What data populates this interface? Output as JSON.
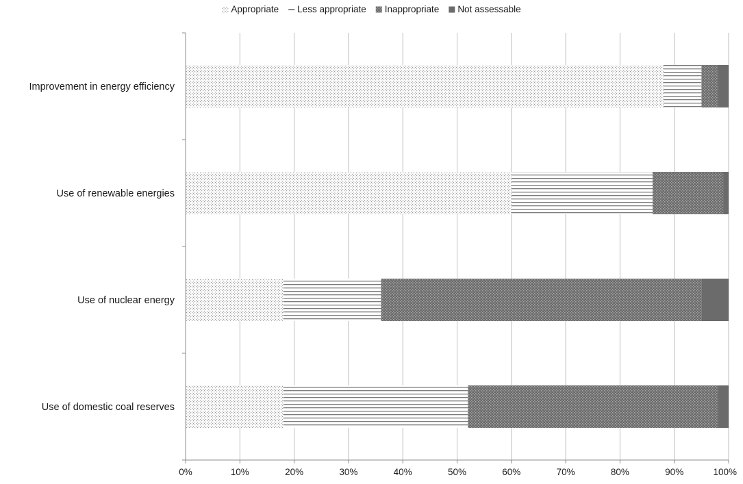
{
  "chart_data": {
    "type": "bar",
    "orientation": "horizontal",
    "stacked": "percent",
    "title": "",
    "xlabel": "",
    "ylabel": "",
    "categories": [
      "Improvement in energy efficiency",
      "Use of renewable energies",
      "Use of nuclear energy",
      "Use of domestic coal reserves"
    ],
    "series": [
      {
        "name": "Appropriate",
        "values": [
          88,
          60,
          18,
          18
        ],
        "pattern": "dots",
        "color": "#b3b3b3"
      },
      {
        "name": "Less appropriate",
        "values": [
          7,
          26,
          18,
          34
        ],
        "pattern": "horizontal-lines",
        "color": "#8a8a8a"
      },
      {
        "name": "Inappropriate",
        "values": [
          3,
          13,
          59,
          46
        ],
        "pattern": "crosshatch",
        "color": "#6e6e6e"
      },
      {
        "name": "Not assessable",
        "values": [
          2,
          1,
          5,
          2
        ],
        "pattern": "solid",
        "color": "#6b6b6b"
      }
    ],
    "xlim": [
      0,
      100
    ],
    "xticks": [
      "0%",
      "10%",
      "20%",
      "30%",
      "40%",
      "50%",
      "60%",
      "70%",
      "80%",
      "90%",
      "100%"
    ],
    "grid": "vertical",
    "legend_position": "top-center"
  }
}
